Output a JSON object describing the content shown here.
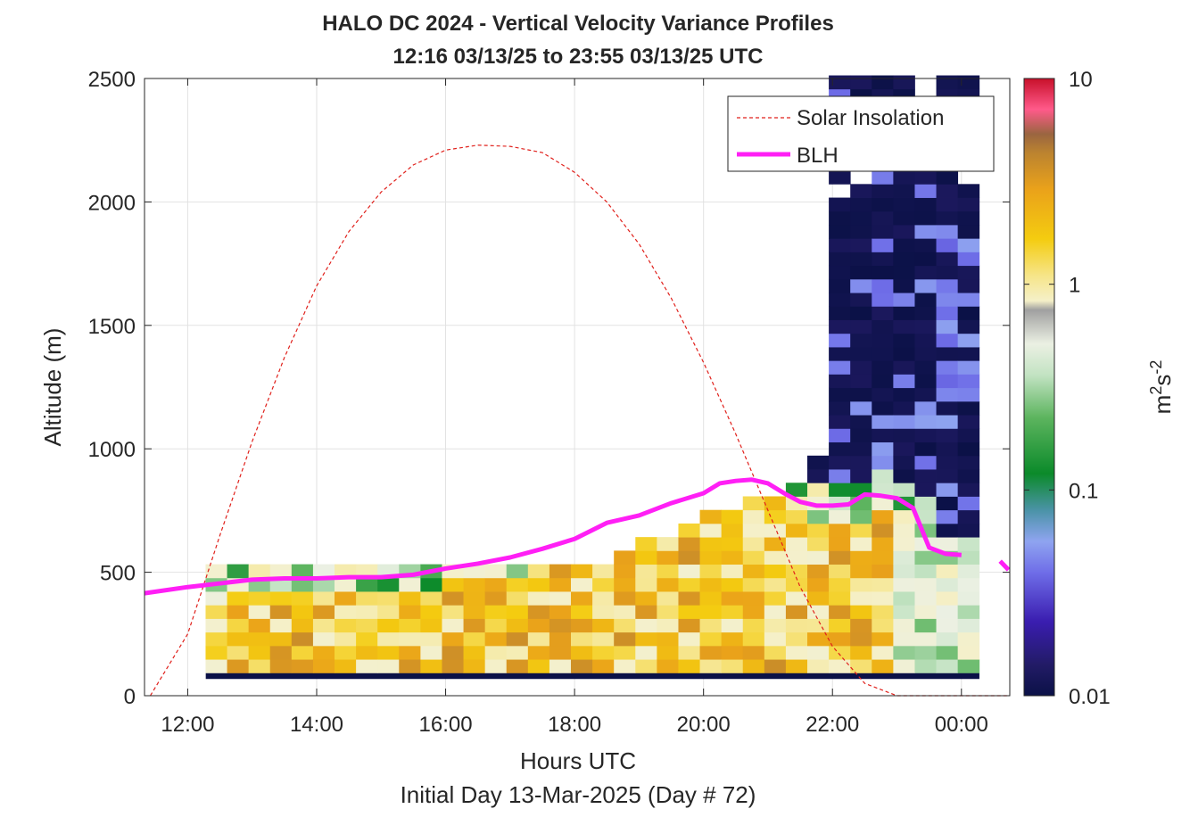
{
  "chart_data": {
    "type": "heatmap",
    "title": "HALO DC 2024 - Vertical Velocity Variance Profiles",
    "subtitle": "12:16 03/13/25 to 23:55 03/13/25  UTC",
    "xlabel": "Hours UTC",
    "xsublabel": "Initial Day 13-Mar-2025 (Day # 72)",
    "ylabel": "Altitude (m)",
    "colorbar_label": "m²s⁻²",
    "colorbar_label_base": "m",
    "colorbar_label_exp1": "2",
    "colorbar_label_mid": "s",
    "colorbar_label_exp2": "-2",
    "x_range_hours": [
      11.33,
      24.75
    ],
    "y_range": [
      0,
      2500
    ],
    "x_ticks": [
      12,
      14,
      16,
      18,
      20,
      22,
      24
    ],
    "x_tick_labels": [
      "12:00",
      "14:00",
      "16:00",
      "18:00",
      "20:00",
      "22:00",
      "00:00"
    ],
    "y_ticks": [
      0,
      500,
      1000,
      1500,
      2000,
      2500
    ],
    "y_tick_labels": [
      "0",
      "500",
      "1000",
      "1500",
      "2000",
      "2500"
    ],
    "colorbar_scale": "log",
    "colorbar_range": [
      0.01,
      10
    ],
    "colorbar_ticks": [
      0.01,
      0.1,
      1,
      10
    ],
    "colorbar_tick_labels": [
      "0.01",
      "0.1",
      "1",
      "10"
    ],
    "grid": true,
    "legend_position": "top-right",
    "legend": [
      {
        "name": "Solar Insolation",
        "style": "dashed",
        "color": "#e0201b"
      },
      {
        "name": "BLH",
        "style": "solid-thick",
        "color": "#ff1ff5"
      }
    ],
    "variance_grid": {
      "x_start_hours": 12.28,
      "x_step_hours": 0.3333,
      "columns": 36,
      "y_step_m": 55,
      "first_row_center_m": 120,
      "column_heights_m": [
        530,
        530,
        510,
        510,
        510,
        510,
        510,
        510,
        510,
        530,
        510,
        510,
        530,
        560,
        560,
        560,
        560,
        560,
        560,
        580,
        630,
        660,
        680,
        730,
        760,
        830,
        830,
        870,
        950,
        2500,
        2500,
        2500,
        2500,
        2500,
        2500,
        2500
      ],
      "note_units": "m2 s-2 (log scale)"
    },
    "blh_series": {
      "name": "BLH",
      "x_hours": [
        11.33,
        12.0,
        12.5,
        13.0,
        13.5,
        14.0,
        14.5,
        15.0,
        15.5,
        16.0,
        16.5,
        17.0,
        17.5,
        18.0,
        18.5,
        19.0,
        19.5,
        20.0,
        20.25,
        20.5,
        20.75,
        21.0,
        21.25,
        21.5,
        21.75,
        22.0,
        22.25,
        22.5,
        22.75,
        23.0,
        23.25,
        23.5,
        23.75,
        24.0
      ],
      "y": [
        415,
        440,
        455,
        470,
        475,
        475,
        480,
        480,
        490,
        515,
        535,
        560,
        595,
        635,
        700,
        730,
        780,
        820,
        860,
        870,
        875,
        860,
        820,
        785,
        770,
        770,
        775,
        815,
        810,
        800,
        760,
        600,
        575,
        570
      ],
      "tail_x_hours": [
        24.6,
        24.73
      ],
      "tail_y": [
        545,
        510
      ]
    },
    "solar_series": {
      "name": "Solar Insolation",
      "x_hours": [
        11.42,
        12.0,
        12.5,
        13.0,
        13.5,
        14.0,
        14.5,
        15.0,
        15.5,
        16.0,
        16.5,
        17.0,
        17.5,
        18.0,
        18.5,
        19.0,
        19.5,
        20.0,
        20.5,
        21.0,
        21.5,
        22.0,
        22.5,
        23.0,
        23.17,
        24.75
      ],
      "y": [
        0,
        250,
        650,
        1030,
        1370,
        1660,
        1880,
        2040,
        2150,
        2210,
        2230,
        2225,
        2200,
        2120,
        2000,
        1830,
        1610,
        1350,
        1060,
        750,
        440,
        200,
        50,
        0,
        0,
        0
      ]
    }
  }
}
